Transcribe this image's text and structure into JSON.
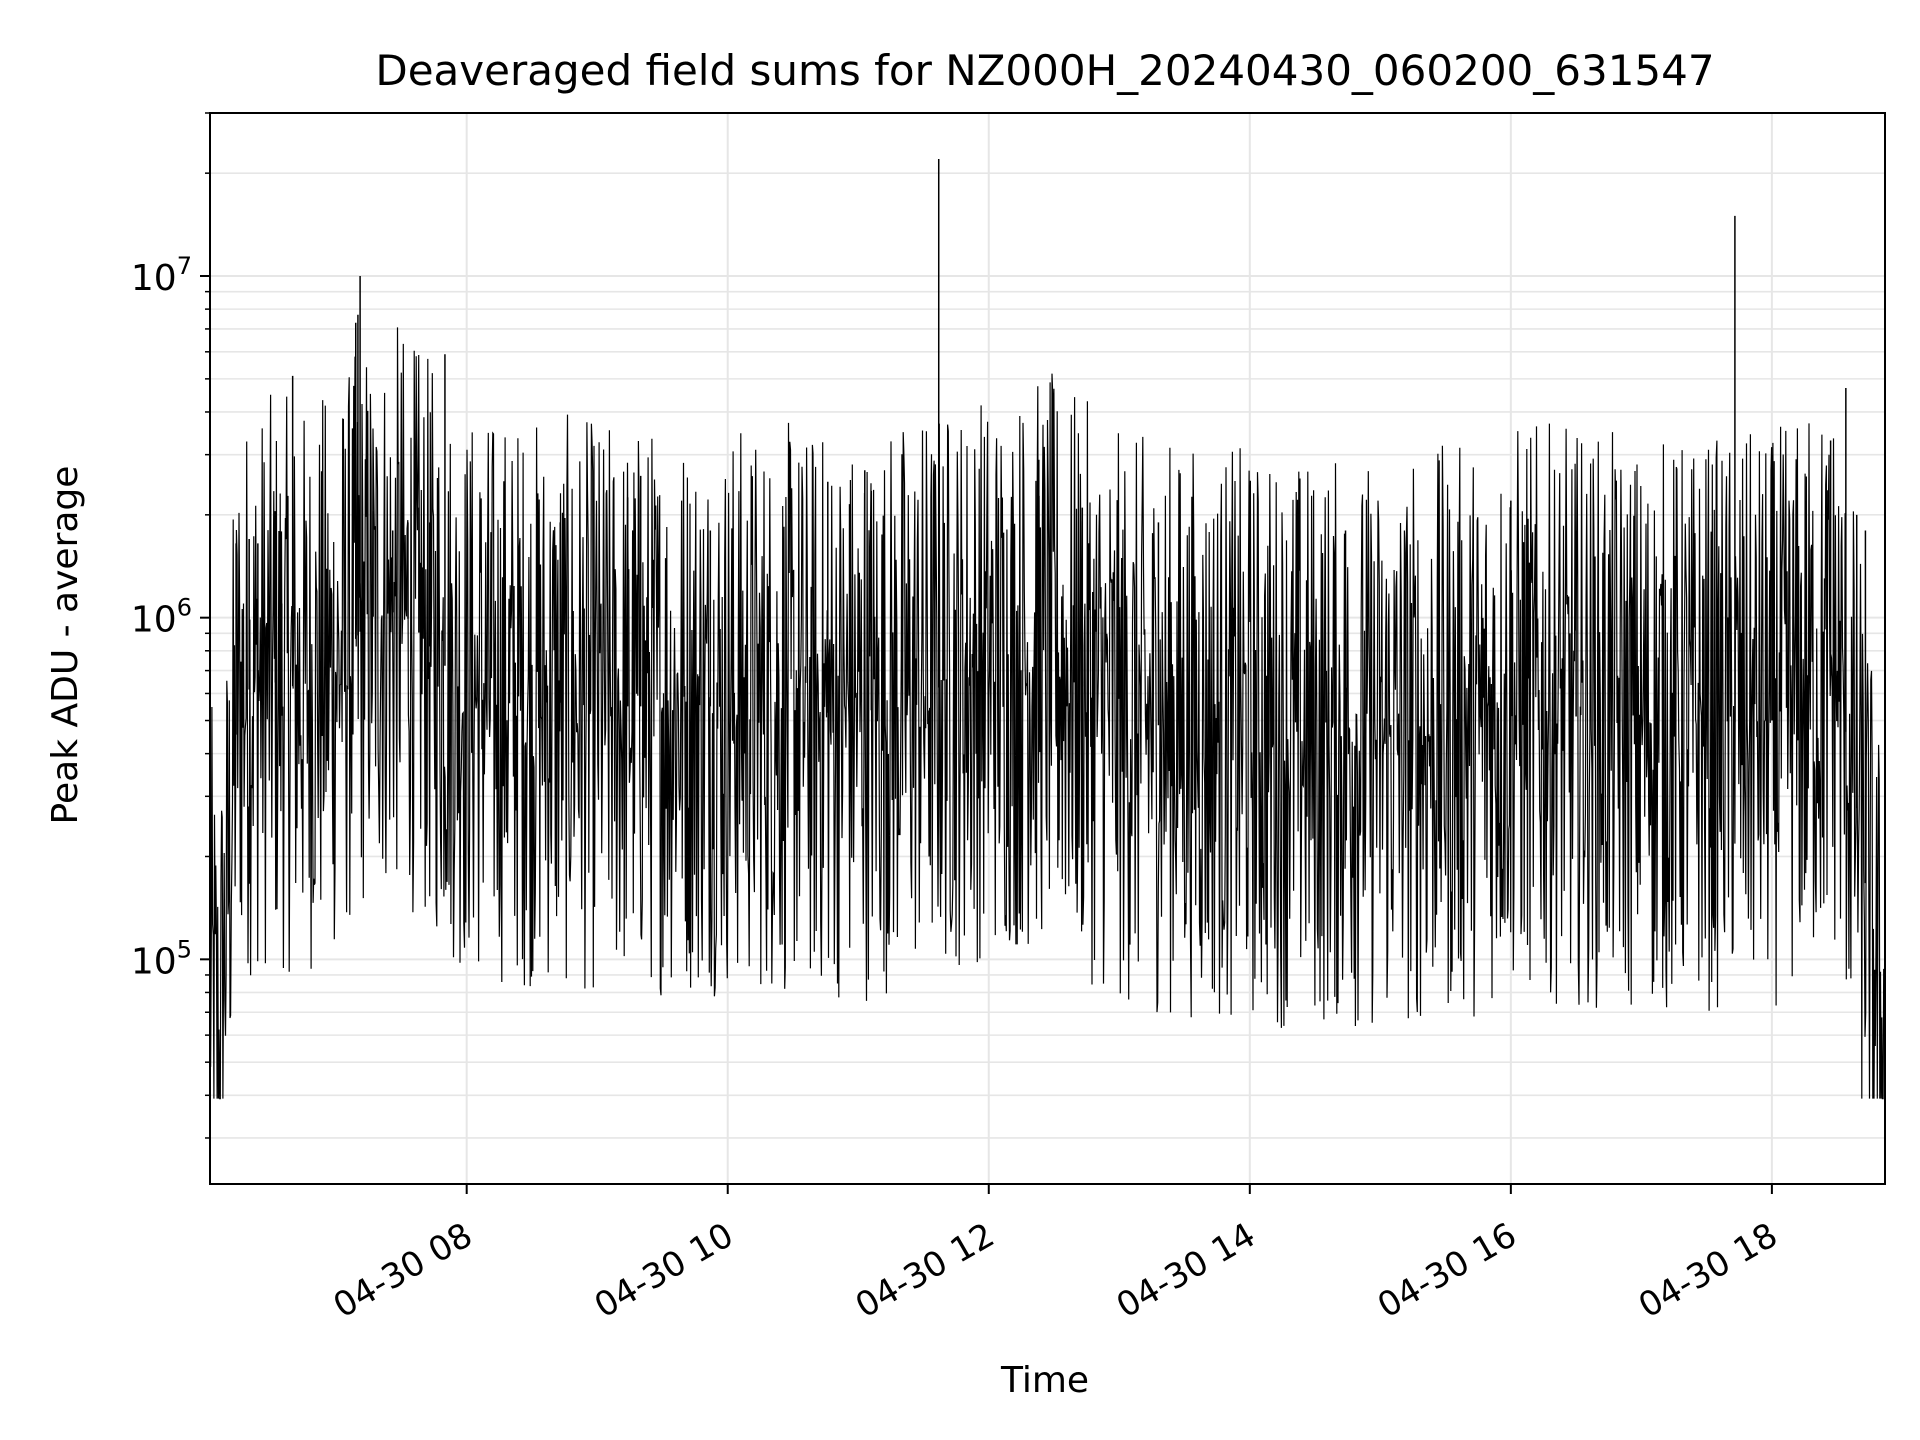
{
  "chart_data": {
    "type": "line",
    "title": "Deaveraged field sums for NZ000H_20240430_060200_631547",
    "xlabel": "Time",
    "ylabel": "Peak ADU - average",
    "y_scale": "log",
    "ylim": [
      22000,
      30000000
    ],
    "xlim": [
      "2024-04-30T06:02",
      "2024-04-30T18:52"
    ],
    "grid": true,
    "legend": "none",
    "line_color": "#000000",
    "grid_color": "#e6e6e6",
    "x_ticks": [
      {
        "t": "2024-04-30T08:00",
        "label": "04-30 08"
      },
      {
        "t": "2024-04-30T10:00",
        "label": "04-30 10"
      },
      {
        "t": "2024-04-30T12:00",
        "label": "04-30 12"
      },
      {
        "t": "2024-04-30T14:00",
        "label": "04-30 14"
      },
      {
        "t": "2024-04-30T16:00",
        "label": "04-30 16"
      },
      {
        "t": "2024-04-30T18:00",
        "label": "04-30 18"
      }
    ],
    "y_ticks": [
      {
        "value": 100000,
        "base": "10",
        "exp": "5"
      },
      {
        "value": 1000000,
        "base": "10",
        "exp": "6"
      },
      {
        "value": 10000000,
        "base": "10",
        "exp": "7"
      }
    ],
    "series": [
      {
        "values_per_segment": 120,
        "points": [
          {
            "t": "2024-04-30T06:02",
            "y": 90000
          },
          {
            "t": "2024-04-30T06:06",
            "y": 50000
          },
          {
            "t": "2024-04-30T06:10",
            "y": 150000
          },
          {
            "t": "2024-04-30T06:15",
            "y": 600000
          },
          {
            "t": "2024-04-30T06:30",
            "y": 650000
          },
          {
            "t": "2024-04-30T06:45",
            "y": 620000
          },
          {
            "t": "2024-04-30T07:00",
            "y": 700000
          },
          {
            "t": "2024-04-30T07:15",
            "y": 1000000
          },
          {
            "t": "2024-04-30T07:30",
            "y": 1050000
          },
          {
            "t": "2024-04-30T08:00",
            "y": 600000
          },
          {
            "t": "2024-04-30T09:00",
            "y": 550000
          },
          {
            "t": "2024-04-30T10:00",
            "y": 550000
          },
          {
            "t": "2024-04-30T11:00",
            "y": 520000
          },
          {
            "t": "2024-04-30T12:00",
            "y": 700000
          },
          {
            "t": "2024-04-30T12:30",
            "y": 750000
          },
          {
            "t": "2024-04-30T13:00",
            "y": 500000
          },
          {
            "t": "2024-04-30T14:00",
            "y": 450000
          },
          {
            "t": "2024-04-30T15:00",
            "y": 420000
          },
          {
            "t": "2024-04-30T15:45",
            "y": 480000
          },
          {
            "t": "2024-04-30T16:00",
            "y": 550000
          },
          {
            "t": "2024-04-30T17:00",
            "y": 480000
          },
          {
            "t": "2024-04-30T18:00",
            "y": 500000
          },
          {
            "t": "2024-04-30T18:30",
            "y": 700000
          },
          {
            "t": "2024-04-30T18:40",
            "y": 250000
          },
          {
            "t": "2024-04-30T18:52",
            "y": 50000
          }
        ],
        "spikes": [
          {
            "t": "2024-04-30T06:14",
            "y": 1650000
          },
          {
            "t": "2024-04-30T06:20",
            "y": 1700000
          },
          {
            "t": "2024-04-30T06:24",
            "y": 1650000
          },
          {
            "t": "2024-04-30T06:32",
            "y": 2050000
          },
          {
            "t": "2024-04-30T06:35",
            "y": 1100000
          },
          {
            "t": "2024-04-30T06:40",
            "y": 5100000
          },
          {
            "t": "2024-04-30T07:09",
            "y": 7300000
          },
          {
            "t": "2024-04-30T07:10",
            "y": 7700000
          },
          {
            "t": "2024-04-30T07:11",
            "y": 10000000
          },
          {
            "t": "2024-04-30T07:17",
            "y": 2050000
          },
          {
            "t": "2024-04-30T07:26",
            "y": 1800000
          },
          {
            "t": "2024-04-30T07:33",
            "y": 1900000
          },
          {
            "t": "2024-04-30T07:38",
            "y": 2100000
          },
          {
            "t": "2024-04-30T07:43",
            "y": 1900000
          },
          {
            "t": "2024-04-30T07:50",
            "y": 5900000
          },
          {
            "t": "2024-04-30T08:43",
            "y": 1900000
          },
          {
            "t": "2024-04-30T09:14",
            "y": 2250000
          },
          {
            "t": "2024-04-30T09:20",
            "y": 2600000
          },
          {
            "t": "2024-04-30T09:52",
            "y": 1800000
          },
          {
            "t": "2024-04-30T10:46",
            "y": 2500000
          },
          {
            "t": "2024-04-30T10:56",
            "y": 2150000
          },
          {
            "t": "2024-04-30T11:03",
            "y": 2700000
          },
          {
            "t": "2024-04-30T11:06",
            "y": 2350000
          },
          {
            "t": "2024-04-30T11:37",
            "y": 22000000
          },
          {
            "t": "2024-04-30T12:23",
            "y": 2900000
          },
          {
            "t": "2024-04-30T12:43",
            "y": 2100000
          },
          {
            "t": "2024-04-30T13:18",
            "y": 1900000
          },
          {
            "t": "2024-04-30T14:44",
            "y": 1800000
          },
          {
            "t": "2024-04-30T16:00",
            "y": 2200000
          },
          {
            "t": "2024-04-30T16:30",
            "y": 1800000
          },
          {
            "t": "2024-04-30T17:43",
            "y": 15000000
          },
          {
            "t": "2024-04-30T18:00",
            "y": 3000000
          },
          {
            "t": "2024-04-30T18:27",
            "y": 3300000
          },
          {
            "t": "2024-04-30T18:34",
            "y": 4700000
          },
          {
            "t": "2024-04-30T18:39",
            "y": 2000000
          },
          {
            "t": "2024-04-30T18:43",
            "y": 1800000
          }
        ]
      }
    ]
  }
}
